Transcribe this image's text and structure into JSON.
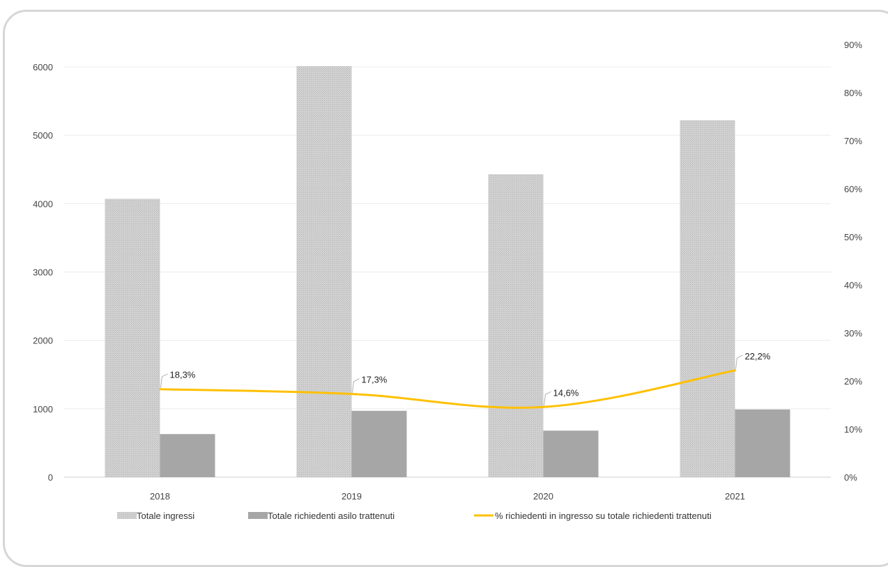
{
  "chart_data": {
    "type": "bar",
    "title": "",
    "categories": [
      "2018",
      "2019",
      "2020",
      "2021"
    ],
    "series": [
      {
        "name": "Totale ingressi",
        "kind": "bar",
        "axis": "left",
        "color": "#c8c8c8",
        "pattern": "hatched",
        "values": [
          4070,
          6010,
          4430,
          5220
        ]
      },
      {
        "name": "Totale richiedenti asilo trattenuti",
        "kind": "bar",
        "axis": "left",
        "color": "#a6a6a6",
        "values": [
          630,
          970,
          680,
          990
        ]
      },
      {
        "name": "% richiedenti in ingresso su totale richiedenti trattenuti",
        "kind": "line",
        "axis": "right",
        "color": "#ffc000",
        "values": [
          18.3,
          17.3,
          14.6,
          22.2
        ],
        "labels": [
          "18,3%",
          "17,3%",
          "14,6%",
          "22,2%"
        ]
      }
    ],
    "y_left": {
      "min": 0,
      "max": 6000,
      "ticks": [
        "0",
        "1000",
        "2000",
        "3000",
        "4000",
        "5000",
        "6000"
      ]
    },
    "y_right": {
      "min": 0,
      "max": 90,
      "ticks": [
        "0%",
        "10%",
        "20%",
        "30%",
        "40%",
        "50%",
        "60%",
        "70%",
        "80%",
        "90%"
      ]
    },
    "grid": true,
    "legend": "bottom"
  }
}
